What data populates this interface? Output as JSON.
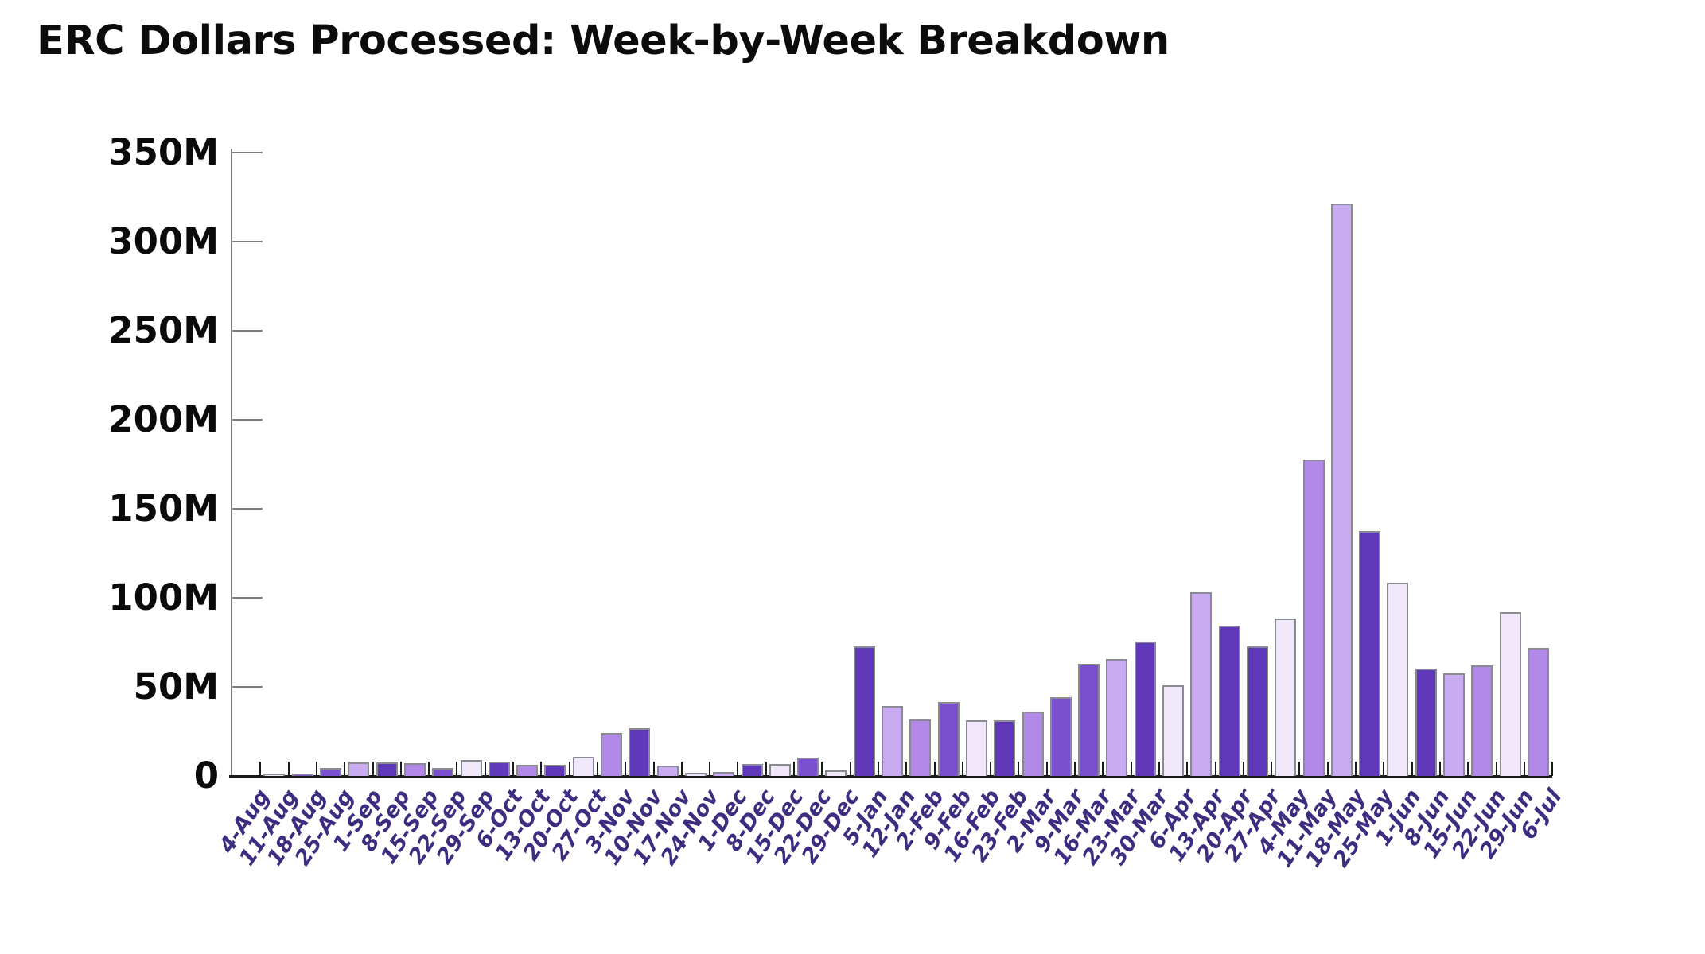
{
  "page": {
    "background": "#ffffff"
  },
  "chart_data": {
    "type": "bar",
    "title": "ERC Dollars Processed: Week-by-Week Breakdown",
    "xlabel": "",
    "ylabel": "",
    "unit": "millions of dollars",
    "ylim": [
      0,
      350
    ],
    "grid": "off",
    "legend": "none",
    "y_ticks": [
      {
        "label": "350M",
        "value": 350
      },
      {
        "label": "300M",
        "value": 300
      },
      {
        "label": "250M",
        "value": 250
      },
      {
        "label": "200M",
        "value": 200
      },
      {
        "label": "150M",
        "value": 150
      },
      {
        "label": "100M",
        "value": 100
      },
      {
        "label": "50M",
        "value": 50
      },
      {
        "label": "0",
        "value": 0
      }
    ],
    "categories": [
      "4-Aug",
      "11-Aug",
      "18-Aug",
      "25-Aug",
      "1-Sep",
      "8-Sep",
      "15-Sep",
      "22-Sep",
      "29-Sep",
      "6-Oct",
      "13-Oct",
      "20-Oct",
      "27-Oct",
      "3-Nov",
      "10-Nov",
      "17-Nov",
      "24-Nov",
      "1-Dec",
      "8-Dec",
      "15-Dec",
      "22-Dec",
      "29-Dec",
      "5-Jan",
      "12-Jan",
      "2-Feb",
      "9-Feb",
      "16-Feb",
      "23-Feb",
      "2-Mar",
      "9-Mar",
      "16-Mar",
      "23-Mar",
      "30-Mar",
      "6-Apr",
      "13-Apr",
      "20-Apr",
      "27-Apr",
      "4-May",
      "11-May",
      "18-May",
      "25-May",
      "1-Jun",
      "8-Jun",
      "15-Jun",
      "22-Jun",
      "29-Jun",
      "6-Jul"
    ],
    "values": [
      0,
      1.5,
      1.2,
      4.5,
      7.6,
      7.7,
      7.0,
      4.6,
      9.0,
      8.0,
      6.3,
      6.1,
      10.9,
      24.0,
      26.8,
      6.0,
      1.8,
      2.4,
      6.5,
      6.5,
      10.4,
      3.0,
      72.6,
      39.4,
      31.7,
      41.5,
      31.4,
      31.1,
      36.3,
      44.1,
      62.8,
      65.5,
      75.5,
      50.7,
      103.0,
      84.4,
      72.8,
      88.6,
      177.7,
      321.4,
      137.5,
      108.5,
      60.3,
      57.6,
      62.1,
      92.0,
      71.9
    ],
    "shades": [
      "very_light",
      "very_light",
      "medium",
      "medium",
      "light",
      "dark",
      "medium_light",
      "medium",
      "very_light",
      "dark",
      "medium_light",
      "dark",
      "very_light",
      "medium_light",
      "dark",
      "light",
      "very_light",
      "light",
      "dark",
      "very_light",
      "medium",
      "very_light",
      "dark",
      "light",
      "medium_light",
      "medium",
      "very_light",
      "dark",
      "medium_light",
      "medium",
      "medium",
      "light",
      "dark",
      "very_light",
      "light",
      "dark",
      "dark",
      "very_light",
      "medium_light",
      "light",
      "dark",
      "very_light",
      "dark",
      "light",
      "medium_light",
      "very_light",
      "medium_light"
    ],
    "palette": {
      "dark": "#5e38b8",
      "medium": "#7b50d0",
      "medium_light": "#b289e8",
      "light": "#c9abf2",
      "very_light": "#f0e7fb"
    },
    "bar_border_color": "#8a8a92",
    "axis_colors": {
      "y_axis_line": "#7f7f7f",
      "y_tick": "#7f7f7f",
      "x_axis_line": "#1a1a1a",
      "x_tick": "#1a1a1a",
      "title_color": "#0c0c0c",
      "y_label_color": "#0a0a0a",
      "x_label_color": "#3e2c80"
    }
  }
}
